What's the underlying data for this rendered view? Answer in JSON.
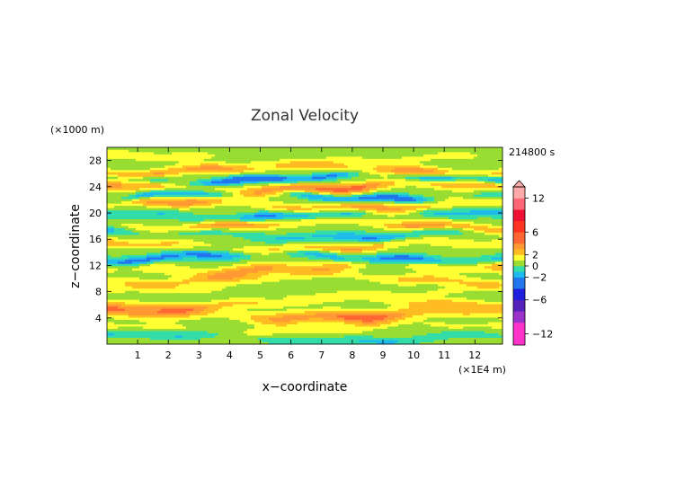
{
  "chart_data": {
    "type": "heatmap",
    "title": "Zonal Velocity",
    "xlabel": "x−coordinate",
    "ylabel": "z−coordinate",
    "x_unit": "(×1E4 m)",
    "y_unit": "(×1000 m)",
    "time_label": "214800 s",
    "x_ticks": [
      1,
      2,
      3,
      4,
      5,
      6,
      7,
      8,
      9,
      10,
      11,
      12
    ],
    "y_ticks": [
      4,
      8,
      12,
      16,
      20,
      24,
      28
    ],
    "xlim": [
      0,
      12.9
    ],
    "ylim": [
      0,
      30
    ],
    "colorbar": {
      "tick_values": [
        12,
        6,
        2,
        0,
        -2,
        -6,
        -12
      ],
      "tick_labels": [
        "12",
        "6",
        "2",
        "0",
        "−2",
        "−6",
        "−12"
      ],
      "range": [
        -14,
        14
      ],
      "extend": "max"
    },
    "palette": [
      {
        "min": -14,
        "max": -10,
        "color": "#ff33cc"
      },
      {
        "min": -10,
        "max": -8,
        "color": "#9933cc"
      },
      {
        "min": -8,
        "max": -6,
        "color": "#5522bb"
      },
      {
        "min": -6,
        "max": -4,
        "color": "#1f1fdd"
      },
      {
        "min": -4,
        "max": -2,
        "color": "#2277ee"
      },
      {
        "min": -2,
        "max": -1,
        "color": "#1fbbee"
      },
      {
        "min": -1,
        "max": 0,
        "color": "#33ddaa"
      },
      {
        "min": 0,
        "max": 1,
        "color": "#99dd33"
      },
      {
        "min": 1,
        "max": 2,
        "color": "#ffff33"
      },
      {
        "min": 2,
        "max": 3,
        "color": "#ffbb22"
      },
      {
        "min": 3,
        "max": 4,
        "color": "#ff9933"
      },
      {
        "min": 4,
        "max": 6,
        "color": "#ff6633"
      },
      {
        "min": 6,
        "max": 8,
        "color": "#ff3322"
      },
      {
        "min": 8,
        "max": 10,
        "color": "#ee1133"
      },
      {
        "min": 10,
        "max": 12,
        "color": "#ff6677"
      },
      {
        "min": 12,
        "max": 14,
        "color": "#ffaaaa"
      }
    ],
    "bands": [
      {
        "z": 1.0,
        "amp": -1.5,
        "width": 0.6,
        "phase": 0.5
      },
      {
        "z": 2.5,
        "amp": 1.3,
        "width": 0.7,
        "phase": 2.0
      },
      {
        "z": 4.6,
        "amp": 4.0,
        "width": 1.0,
        "phase": 1.1
      },
      {
        "z": 6.3,
        "amp": 1.6,
        "width": 0.7,
        "phase": 3.5
      },
      {
        "z": 8.0,
        "amp": 1.0,
        "width": 0.8,
        "phase": 0.2
      },
      {
        "z": 10.0,
        "amp": 1.9,
        "width": 0.8,
        "phase": 4.1
      },
      {
        "z": 11.7,
        "amp": 2.6,
        "width": 0.9,
        "phase": 2.7
      },
      {
        "z": 13.3,
        "amp": -3.0,
        "width": 0.7,
        "phase": 5.0
      },
      {
        "z": 15.0,
        "amp": 2.6,
        "width": 0.7,
        "phase": 1.6
      },
      {
        "z": 16.8,
        "amp": -2.2,
        "width": 0.7,
        "phase": 0.9
      },
      {
        "z": 18.2,
        "amp": 3.2,
        "width": 0.7,
        "phase": 3.9
      },
      {
        "z": 19.8,
        "amp": -2.6,
        "width": 0.7,
        "phase": 2.4
      },
      {
        "z": 21.3,
        "amp": 3.4,
        "width": 0.8,
        "phase": 0.4
      },
      {
        "z": 22.6,
        "amp": -3.2,
        "width": 0.6,
        "phase": 5.5
      },
      {
        "z": 24.0,
        "amp": 4.2,
        "width": 0.8,
        "phase": 1.9
      },
      {
        "z": 25.3,
        "amp": -3.6,
        "width": 0.6,
        "phase": 3.1
      },
      {
        "z": 26.6,
        "amp": 3.0,
        "width": 0.7,
        "phase": 4.6
      },
      {
        "z": 28.2,
        "amp": 1.3,
        "width": 0.8,
        "phase": 0.8
      }
    ]
  }
}
